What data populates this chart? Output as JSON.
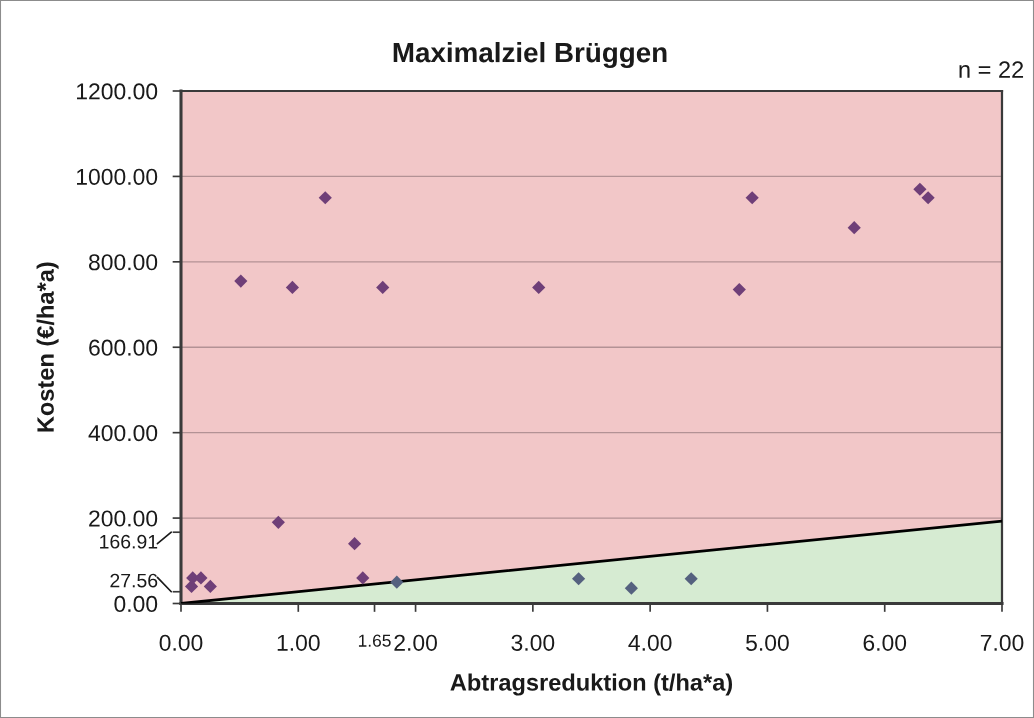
{
  "chart_data": {
    "type": "scatter",
    "title": "Maximalziel Brüggen",
    "xlabel": "Abtragsreduktion (t/ha*a)",
    "ylabel": "Kosten (€/ha*a)",
    "annotations": [
      "n = 22"
    ],
    "xlim": [
      0,
      7
    ],
    "xticks": [
      {
        "value": 0,
        "label": "0.00"
      },
      {
        "value": 1,
        "label": "1.00"
      },
      {
        "value": 1.65,
        "label": "1.65"
      },
      {
        "value": 2,
        "label": "2.00"
      },
      {
        "value": 3,
        "label": "3.00"
      },
      {
        "value": 4,
        "label": "4.00"
      },
      {
        "value": 5,
        "label": "5.00"
      },
      {
        "value": 6,
        "label": "6.00"
      },
      {
        "value": 7,
        "label": "7.00"
      }
    ],
    "ylim": [
      0,
      1200
    ],
    "yticks": [
      {
        "value": 0,
        "label": "0.00"
      },
      {
        "value": 27.56,
        "label": "27.56"
      },
      {
        "value": 166.91,
        "label": "166.91"
      },
      {
        "value": 200,
        "label": "200.00"
      },
      {
        "value": 400,
        "label": "400.00"
      },
      {
        "value": 600,
        "label": "600.00"
      },
      {
        "value": 800,
        "label": "800.00"
      },
      {
        "value": 1000,
        "label": "1000.00"
      },
      {
        "value": 1200,
        "label": "1200.00"
      }
    ],
    "grid": "y",
    "series": [
      {
        "type": "area",
        "x": [
          0,
          7
        ],
        "values": [
          0,
          193
        ],
        "color": "#d6ebd2"
      },
      {
        "x": [
          0.1,
          0.17,
          0.09,
          0.25,
          0.51,
          0.83,
          0.95,
          1.23,
          1.48,
          1.55,
          1.72,
          3.05,
          4.76,
          4.87,
          5.74,
          6.3,
          6.37
        ],
        "values": [
          60,
          60,
          40,
          40,
          755,
          190,
          740,
          950,
          140,
          60,
          740,
          740,
          735,
          950,
          880,
          970,
          950
        ],
        "color": "#6f3f78",
        "marker": "diamond"
      },
      {
        "x": [
          1.84,
          3.39,
          3.84,
          4.35
        ],
        "values": [
          50,
          58,
          36,
          58
        ],
        "color": "#55617f",
        "marker": "diamond"
      }
    ]
  }
}
